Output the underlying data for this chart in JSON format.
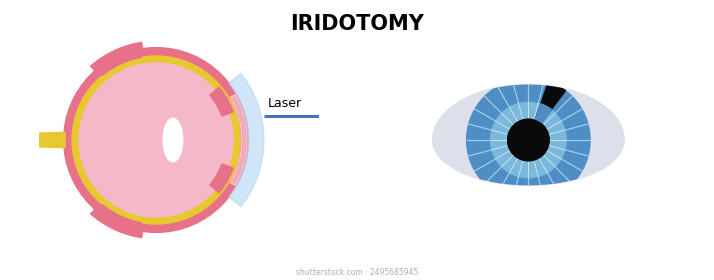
{
  "title": "IRIDOTOMY",
  "title_fontsize": 15,
  "title_fontweight": "bold",
  "background_color": "#ffffff",
  "laser_label": "Laser",
  "watermark": "shutterstock.com · 2495685945",
  "colors": {
    "sclera_outer": "#e8718a",
    "choroid": "#e8c830",
    "retina_fill": "#f5b8c8",
    "cornea": "#b8d8f0",
    "optic_nerve_yellow": "#e8c830",
    "laser_line": "#4a6fbd",
    "eye_sclera": "#dde0ea",
    "iris_blue_outer": "#4e8ec4",
    "iris_blue_inner": "#7ab8dc",
    "iris_line_color": "#a8d4f0",
    "pupil_black": "#0a0a0a",
    "defect_black": "#0a0a0a",
    "white": "#ffffff"
  }
}
